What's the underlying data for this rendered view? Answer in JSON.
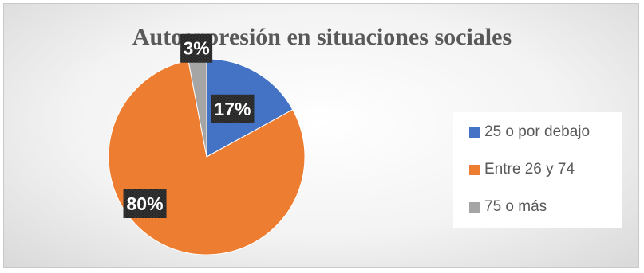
{
  "chart_data": {
    "type": "pie",
    "title": "Autoexpresión en situaciones sociales",
    "categories": [
      "25 o por debajo",
      "Entre 26 y 74",
      "75 o más"
    ],
    "values": [
      17,
      80,
      3
    ],
    "data_labels": [
      "17%",
      "80%",
      "3%"
    ],
    "colors": [
      "#4472c4",
      "#ed7d31",
      "#a5a5a5"
    ],
    "legend_position": "right"
  }
}
